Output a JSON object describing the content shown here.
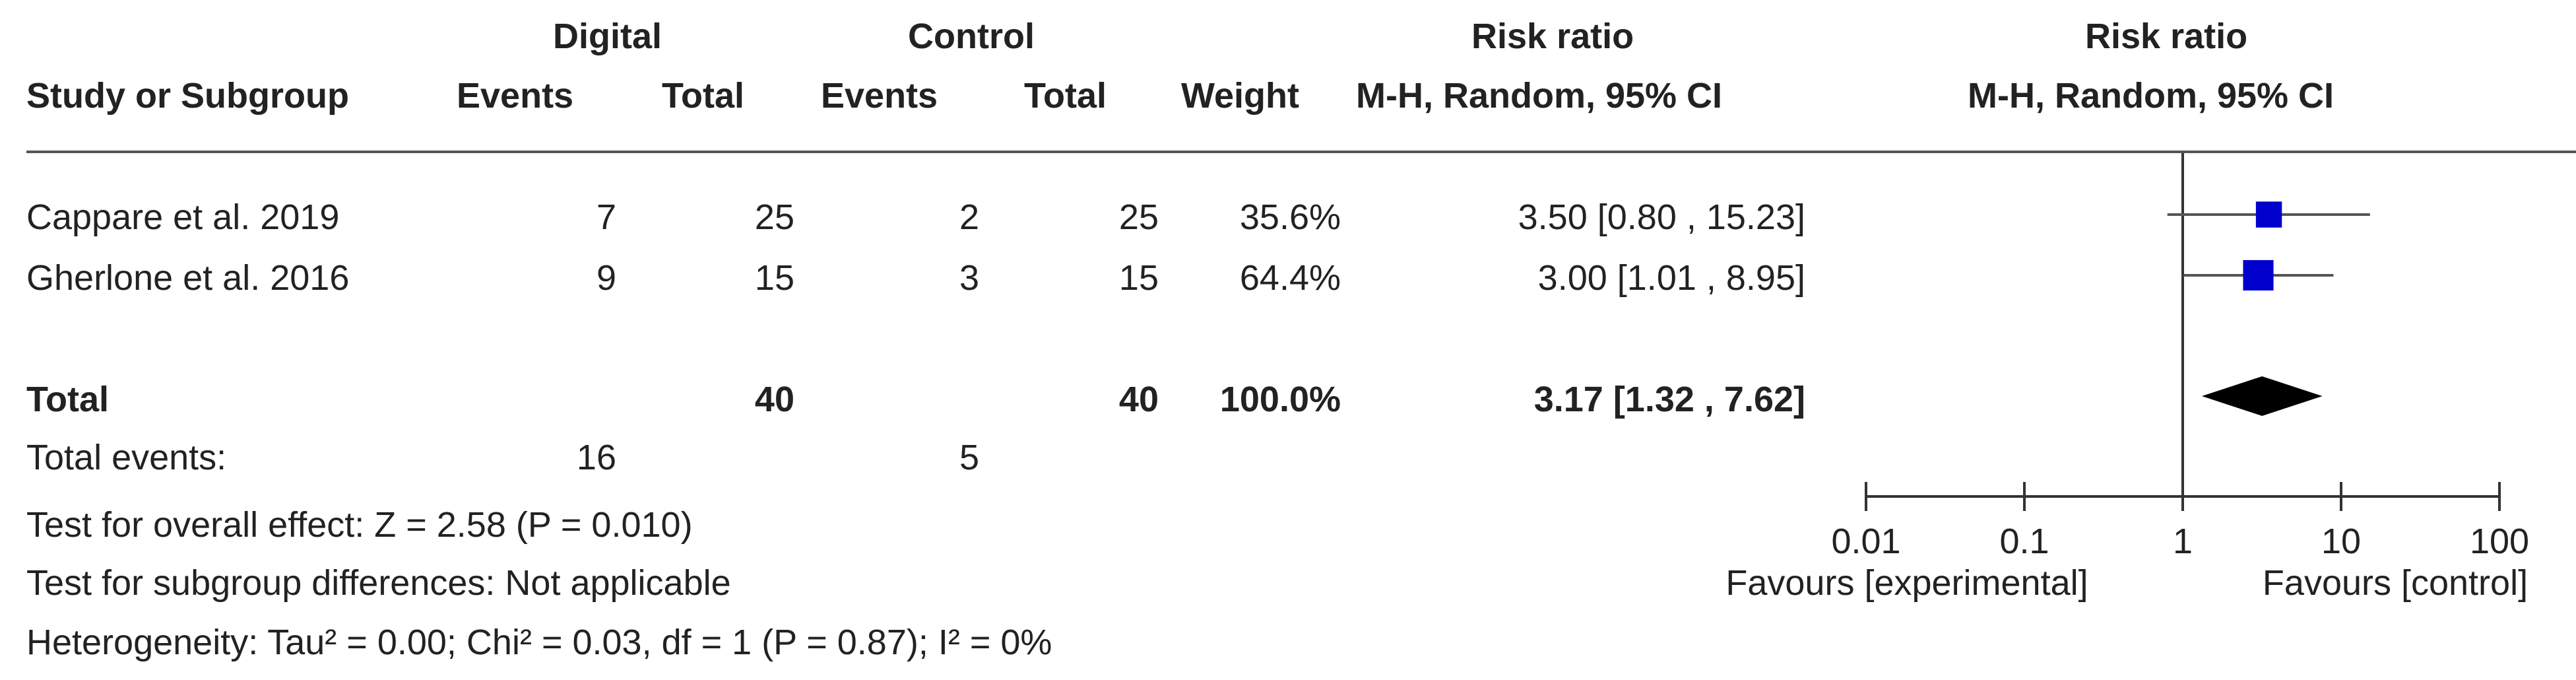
{
  "header": {
    "group1": "Digital",
    "group2": "Control",
    "rr_col": "Risk ratio",
    "rr_plot": "Risk ratio",
    "study": "Study or Subgroup",
    "events1": "Events",
    "total1": "Total",
    "events2": "Events",
    "total2": "Total",
    "weight": "Weight",
    "method_col": "M-H, Random, 95% CI",
    "method_plot": "M-H, Random, 95% CI"
  },
  "studies": [
    {
      "name": "Cappare et al. 2019",
      "events1": "7",
      "total1": "25",
      "events2": "2",
      "total2": "25",
      "weight": "35.6%",
      "ci_text": "3.50 [0.80 , 15.23]"
    },
    {
      "name": "Gherlone et al. 2016",
      "events1": "9",
      "total1": "15",
      "events2": "3",
      "total2": "15",
      "weight": "64.4%",
      "ci_text": "3.00 [1.01 , 8.95]"
    }
  ],
  "total": {
    "label": "Total",
    "total1": "40",
    "total2": "40",
    "weight": "100.0%",
    "ci_text": "3.17 [1.32 , 7.62]"
  },
  "total_events": {
    "label": "Total events:",
    "events1": "16",
    "events2": "5"
  },
  "footer": {
    "overall": "Test for overall effect: Z = 2.58 (P = 0.010)",
    "subgroup": "Test for subgroup differences: Not applicable",
    "heterogeneity": "Heterogeneity: Tau² = 0.00; Chi² = 0.03, df = 1 (P = 0.87); I² = 0%"
  },
  "axis": {
    "favours_left": "Favours [experimental]",
    "favours_right": "Favours [control]"
  },
  "chart_data": {
    "type": "scatter",
    "xscale": "log",
    "xlim": [
      0.01,
      100
    ],
    "ticks": [
      0.01,
      0.1,
      1,
      10,
      100
    ],
    "tick_labels": [
      "0.01",
      "0.1",
      "1",
      "10",
      "100"
    ],
    "null_line": 1,
    "point_color": "#0000cc",
    "diamond_color": "#000000",
    "studies": [
      {
        "rr": 3.5,
        "lower": 0.8,
        "upper": 15.23,
        "weight": 35.6
      },
      {
        "rr": 3.0,
        "lower": 1.01,
        "upper": 8.95,
        "weight": 64.4
      }
    ],
    "pooled": {
      "rr": 3.17,
      "lower": 1.32,
      "upper": 7.62
    }
  }
}
